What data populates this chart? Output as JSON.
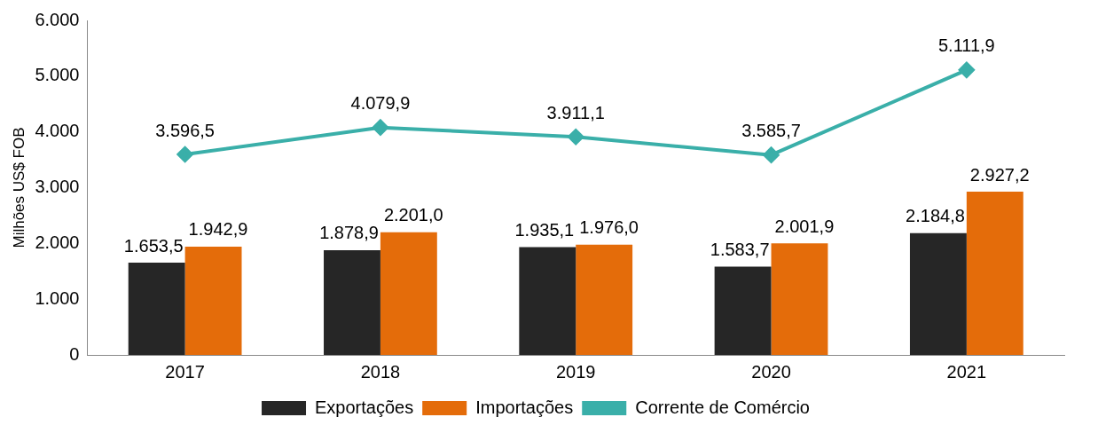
{
  "chart_data": {
    "type": "bar",
    "ylabel": "Milhões US$ FOB",
    "categories": [
      "2017",
      "2018",
      "2019",
      "2020",
      "2021"
    ],
    "series": [
      {
        "name": "Exportações",
        "color": "#262626",
        "values": [
          1653.5,
          1878.9,
          1935.1,
          1583.7,
          2184.8
        ],
        "value_labels": [
          "1.653,5",
          "1.878,9",
          "1.935,1",
          "1.583,7",
          "2.184,8"
        ]
      },
      {
        "name": "Importações",
        "color": "#e46c0a",
        "values": [
          1942.9,
          2201.0,
          1976.0,
          2001.9,
          2927.2
        ],
        "value_labels": [
          "1.942,9",
          "2.201,0",
          "1.976,0",
          "2.001,9",
          "2.927,2"
        ]
      },
      {
        "name": "Corrente de Comércio",
        "type": "line",
        "color": "#3aafa9",
        "marker": "diamond",
        "values": [
          3596.5,
          4079.9,
          3911.1,
          3585.7,
          5111.9
        ],
        "value_labels": [
          "3.596,5",
          "4.079,9",
          "3.911,1",
          "3.585,7",
          "5.111,9"
        ]
      }
    ],
    "ylim": [
      0,
      6000
    ],
    "yticks": [
      {
        "value": 0,
        "label": "0"
      },
      {
        "value": 1000,
        "label": "1.000"
      },
      {
        "value": 2000,
        "label": "2.000"
      },
      {
        "value": 3000,
        "label": "3.000"
      },
      {
        "value": 4000,
        "label": "4.000"
      },
      {
        "value": 5000,
        "label": "5.000"
      },
      {
        "value": 6000,
        "label": "6.000"
      }
    ],
    "grid": false,
    "legend": "bottom"
  }
}
